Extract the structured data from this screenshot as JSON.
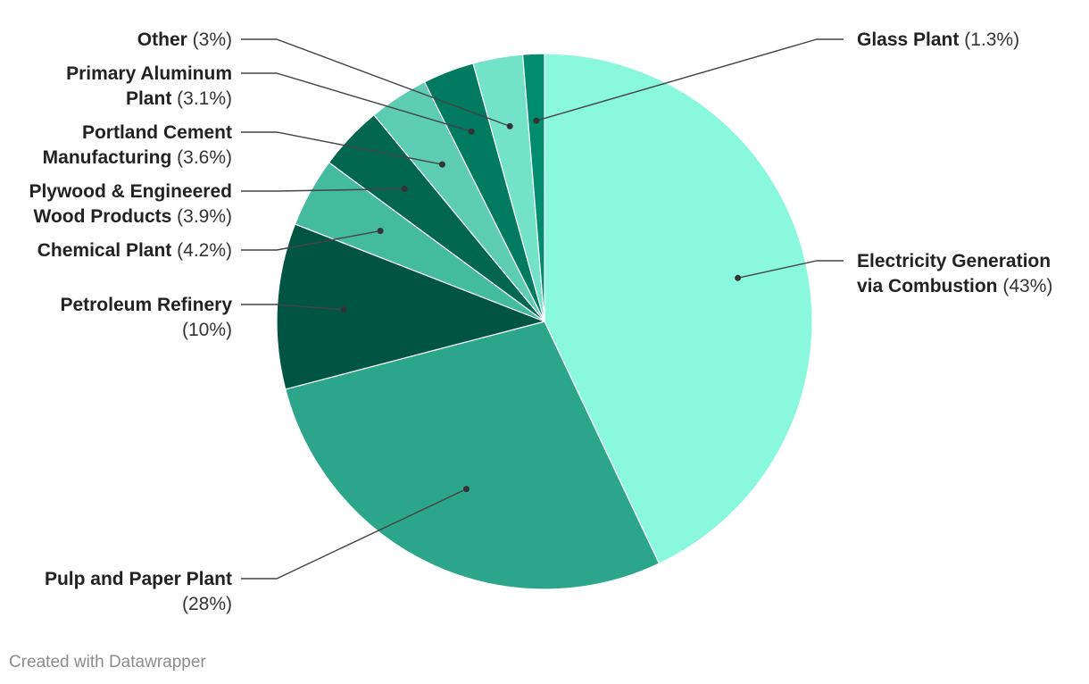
{
  "chart_data": {
    "type": "pie",
    "title": "",
    "slices": [
      {
        "label": "Electricity Generation via Combustion",
        "percent_label": "(43%)",
        "value": 43,
        "color": "#89f8dc"
      },
      {
        "label": "Pulp and Paper Plant",
        "percent_label": "(28%)",
        "value": 28,
        "color": "#2ca68b"
      },
      {
        "label": "Petroleum Refinery",
        "percent_label": "(10%)",
        "value": 10,
        "color": "#005542"
      },
      {
        "label": "Chemical Plant",
        "percent_label": "(4.2%)",
        "value": 4.2,
        "color": "#44ba9f"
      },
      {
        "label": "Plywood & Engineered Wood Products",
        "percent_label": "(3.9%)",
        "value": 3.9,
        "color": "#006650"
      },
      {
        "label": "Portland Cement Manufacturing",
        "percent_label": "(3.6%)",
        "value": 3.6,
        "color": "#5ccdb3"
      },
      {
        "label": "Primary Aluminum Plant",
        "percent_label": "(3.1%)",
        "value": 3.1,
        "color": "#007a60"
      },
      {
        "label": "Other",
        "percent_label": "(3%)",
        "value": 3,
        "color": "#72e2c8"
      },
      {
        "label": "Glass Plant",
        "percent_label": "(1.3%)",
        "value": 1.3,
        "color": "#008c6e"
      }
    ]
  },
  "footer": {
    "credit": "Created with Datawrapper"
  }
}
